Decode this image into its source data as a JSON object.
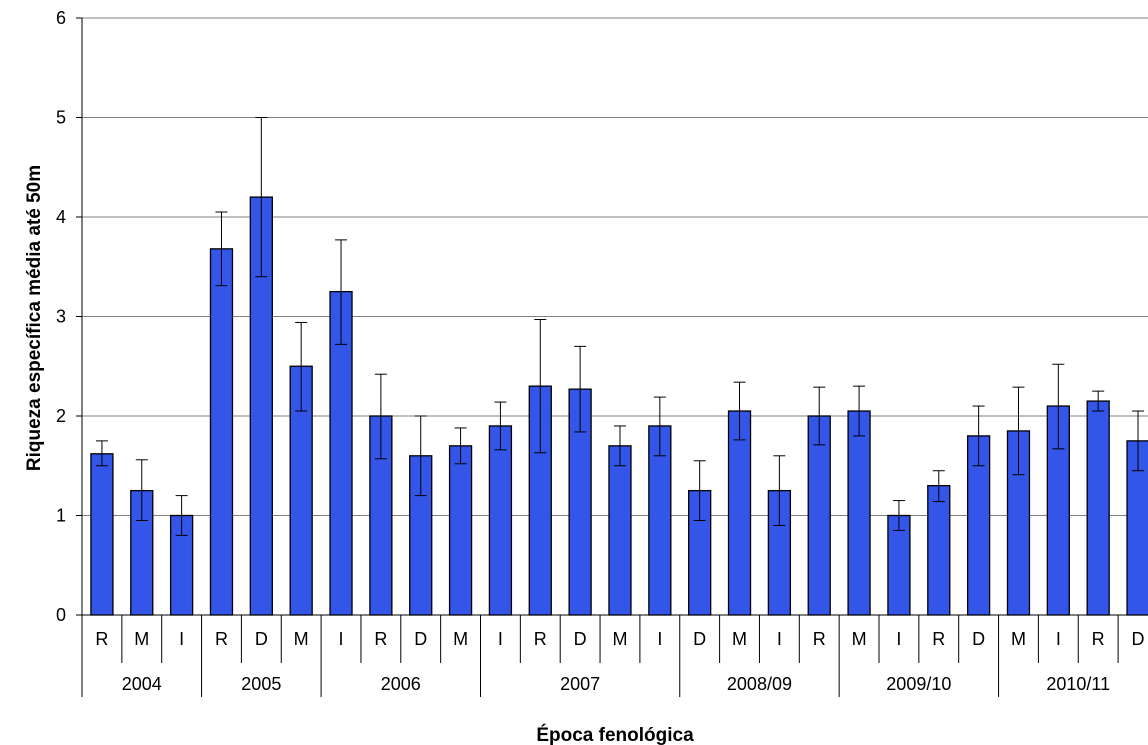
{
  "chart_data": {
    "type": "bar",
    "title": "",
    "xlabel": "Época fenológica",
    "ylabel": "Riqueza específica média até 50m",
    "ylim": [
      0,
      6
    ],
    "yticks": [
      0,
      1,
      2,
      3,
      4,
      5,
      6
    ],
    "grid": "horizontal",
    "legend": "none",
    "colors": {
      "bar": "#3355e8",
      "bar_stroke": "#000000",
      "grid": "#808080",
      "axis": "#000000"
    },
    "categories": [
      "R",
      "M",
      "I",
      "R",
      "D",
      "M",
      "I",
      "R",
      "D",
      "M",
      "I",
      "R",
      "D",
      "M",
      "I",
      "D",
      "M",
      "I",
      "R",
      "M",
      "I",
      "R",
      "D",
      "M",
      "I",
      "R",
      "D"
    ],
    "groups": [
      {
        "label": "2004",
        "count": 3
      },
      {
        "label": "2005",
        "count": 3
      },
      {
        "label": "2006",
        "count": 4
      },
      {
        "label": "2007",
        "count": 5
      },
      {
        "label": "2008/09",
        "count": 4
      },
      {
        "label": "2009/10",
        "count": 4
      },
      {
        "label": "2010/11",
        "count": 4
      }
    ],
    "values": [
      1.62,
      1.25,
      1.0,
      3.68,
      4.2,
      2.5,
      3.25,
      2.0,
      1.6,
      1.7,
      1.9,
      2.3,
      2.27,
      1.7,
      1.9,
      1.25,
      2.05,
      1.25,
      2.0,
      2.05,
      1.0,
      1.3,
      1.8,
      1.85,
      2.1,
      2.15,
      1.75
    ],
    "error_low": [
      1.5,
      0.95,
      0.8,
      3.31,
      3.4,
      2.05,
      2.72,
      1.57,
      1.2,
      1.52,
      1.66,
      1.63,
      1.84,
      1.5,
      1.6,
      0.95,
      1.76,
      0.9,
      1.71,
      1.8,
      0.85,
      1.14,
      1.5,
      1.41,
      1.67,
      2.05,
      1.45
    ],
    "error_high": [
      1.75,
      1.56,
      1.2,
      4.05,
      5.0,
      2.94,
      3.77,
      2.42,
      2.0,
      1.88,
      2.14,
      2.97,
      2.7,
      1.9,
      2.19,
      1.55,
      2.34,
      1.6,
      2.29,
      2.3,
      1.15,
      1.45,
      2.1,
      2.29,
      2.52,
      2.25,
      2.05
    ]
  }
}
